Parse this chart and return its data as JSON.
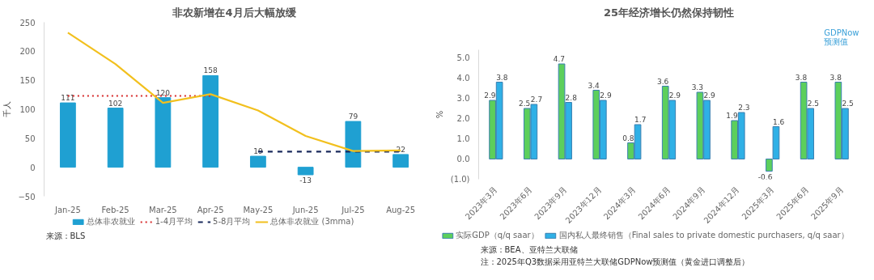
{
  "chart_data": [
    {
      "type": "bar",
      "title": "非农新增在4月后大幅放缓",
      "ylabel": "千人",
      "categories": [
        "Jan-25",
        "Feb-25",
        "Mar-25",
        "Apr-25",
        "May-25",
        "Jun-25",
        "Jul-25",
        "Aug-25"
      ],
      "series": [
        {
          "name": "总体非农就业",
          "color": "#1fa0d2",
          "data_labels": true,
          "values": [
            111,
            102,
            120,
            158,
            19,
            -13,
            79,
            22
          ]
        },
        {
          "name": "1-4月平均",
          "type": "line",
          "color": "#d62828",
          "line_style": "dotted",
          "values": [
            123,
            123,
            123,
            123,
            null,
            null,
            null,
            null
          ]
        },
        {
          "name": "5-8月平均",
          "type": "line",
          "color": "#1a2a5c",
          "line_style": "dashed",
          "values": [
            null,
            null,
            null,
            null,
            27,
            27,
            27,
            27
          ]
        },
        {
          "name": "总体非农就业 (3mma)",
          "type": "line",
          "color": "#f2c01e",
          "line_style": "solid",
          "values": [
            232,
            178,
            111,
            126,
            98,
            54,
            28,
            29
          ]
        }
      ],
      "ylim": [
        -50,
        250
      ],
      "yticks": [
        -50,
        0,
        50,
        100,
        150,
        200,
        250
      ],
      "grid": false,
      "legend": "bottom",
      "marker": "none",
      "annotations": [
        "来源：BLS"
      ]
    },
    {
      "type": "bar",
      "title": "25年经济增长仍然保持韧性",
      "ylabel": "%",
      "categories": [
        "2023年3月",
        "2023年6月",
        "2023年9月",
        "2023年12月",
        "2024年3月",
        "2024年6月",
        "2024年9月",
        "2024年12月",
        "2025年3月",
        "2025年6月",
        "2025年9月"
      ],
      "series": [
        {
          "name": "实际GDP（q/q saar）",
          "color": "#5ccf5c",
          "data_labels": true,
          "values": [
            2.9,
            2.5,
            4.7,
            3.4,
            0.8,
            3.6,
            3.3,
            1.9,
            -0.6,
            3.8,
            3.8
          ]
        },
        {
          "name": "国内私人最终销售（Final sales to private domestic purchasers, q/q saar）",
          "color": "#2fb0e6",
          "data_labels": true,
          "values": [
            3.8,
            2.7,
            2.8,
            2.9,
            1.7,
            2.9,
            2.9,
            2.3,
            1.6,
            2.5,
            2.5
          ]
        }
      ],
      "ylim": [
        -1,
        5.4
      ],
      "yticks": [
        {
          "value": -1,
          "label": "(1.0)"
        },
        {
          "value": 0,
          "label": "0.0"
        },
        {
          "value": 1,
          "label": "1.0"
        },
        {
          "value": 2,
          "label": "2.0"
        },
        {
          "value": 3,
          "label": "3.0"
        },
        {
          "value": 4,
          "label": "4.0"
        },
        {
          "value": 5,
          "label": "5.0"
        }
      ],
      "grid": false,
      "legend": "bottom",
      "annotations": [
        "GDPNow\n预测值",
        "来源：BEA、亚特兰大联储",
        "注：2025年Q3数据采用亚特兰大联储GDPNow预测值（黄金进口调整后）"
      ]
    }
  ]
}
